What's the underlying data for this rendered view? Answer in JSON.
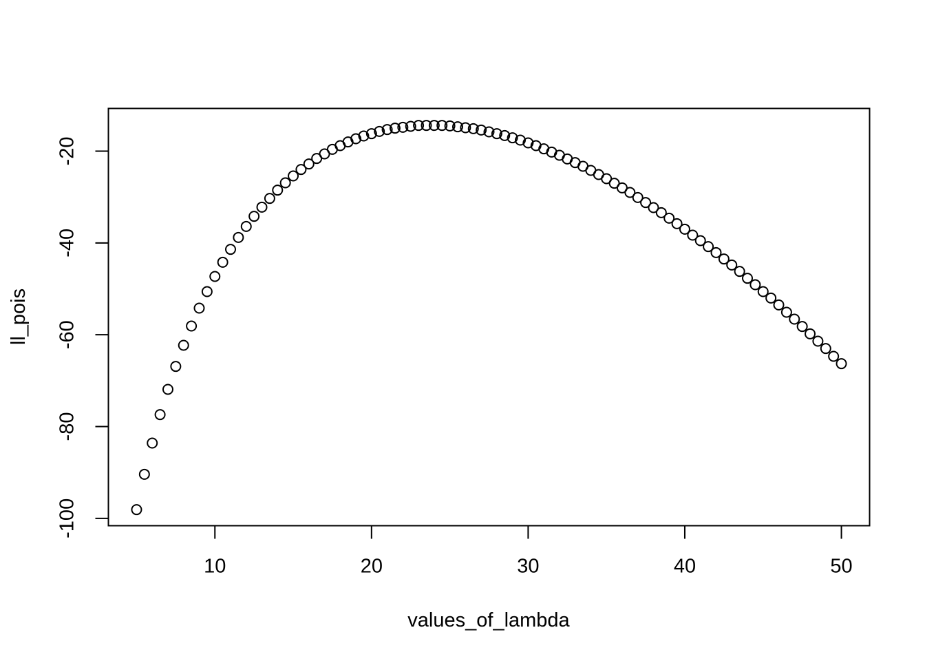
{
  "chart_data": {
    "type": "scatter",
    "title": "",
    "xlabel": "values_of_lambda",
    "ylabel": "ll_pois",
    "xlim": [
      3.2,
      51.8
    ],
    "ylim": [
      -101.6,
      -10.7
    ],
    "xticks": [
      10,
      20,
      30,
      40,
      50
    ],
    "yticks": [
      -100,
      -80,
      -60,
      -40,
      -20
    ],
    "xtick_labels": [
      "10",
      "20",
      "30",
      "40",
      "50"
    ],
    "ytick_labels": [
      "-100",
      "-80",
      "-60",
      "-40",
      "-20"
    ],
    "grid": false,
    "legend": "none",
    "marker": "open-circle",
    "x": [
      5.0,
      5.5,
      6.0,
      6.5,
      7.0,
      7.5,
      8.0,
      8.5,
      9.0,
      9.5,
      10.0,
      10.5,
      11.0,
      11.5,
      12.0,
      12.5,
      13.0,
      13.5,
      14.0,
      14.5,
      15.0,
      15.5,
      16.0,
      16.5,
      17.0,
      17.5,
      18.0,
      18.5,
      19.0,
      19.5,
      20.0,
      20.5,
      21.0,
      21.5,
      22.0,
      22.5,
      23.0,
      23.5,
      24.0,
      24.5,
      25.0,
      25.5,
      26.0,
      26.5,
      27.0,
      27.5,
      28.0,
      28.5,
      29.0,
      29.5,
      30.0,
      30.5,
      31.0,
      31.5,
      32.0,
      32.5,
      33.0,
      33.5,
      34.0,
      34.5,
      35.0,
      35.5,
      36.0,
      36.5,
      37.0,
      37.5,
      38.0,
      38.5,
      39.0,
      39.5,
      40.0,
      40.5,
      41.0,
      41.5,
      42.0,
      42.5,
      43.0,
      43.5,
      44.0,
      44.5,
      45.0,
      45.5,
      46.0,
      46.5,
      47.0,
      47.5,
      48.0,
      48.5,
      49.0,
      49.5,
      50.0
    ],
    "y": [
      -98.1,
      -90.4,
      -83.6,
      -77.4,
      -71.9,
      -66.9,
      -62.3,
      -58.1,
      -54.2,
      -50.6,
      -47.3,
      -44.2,
      -41.4,
      -38.8,
      -36.4,
      -34.2,
      -32.2,
      -30.3,
      -28.5,
      -26.9,
      -25.4,
      -24.0,
      -22.8,
      -21.6,
      -20.6,
      -19.6,
      -18.8,
      -18.0,
      -17.3,
      -16.7,
      -16.2,
      -15.7,
      -15.3,
      -15.0,
      -14.8,
      -14.6,
      -14.4,
      -14.4,
      -14.4,
      -14.4,
      -14.5,
      -14.7,
      -14.9,
      -15.1,
      -15.4,
      -15.8,
      -16.2,
      -16.6,
      -17.1,
      -17.6,
      -18.2,
      -18.8,
      -19.5,
      -20.2,
      -20.9,
      -21.7,
      -22.5,
      -23.3,
      -24.2,
      -25.1,
      -26.0,
      -27.0,
      -28.0,
      -29.0,
      -30.1,
      -31.2,
      -32.3,
      -33.4,
      -34.6,
      -35.8,
      -37.0,
      -38.3,
      -39.5,
      -40.8,
      -42.1,
      -43.5,
      -44.8,
      -46.2,
      -47.7,
      -49.1,
      -50.6,
      -52.0,
      -53.5,
      -55.1,
      -56.6,
      -58.2,
      -59.8,
      -61.4,
      -63.0,
      -64.7,
      -66.3
    ]
  }
}
